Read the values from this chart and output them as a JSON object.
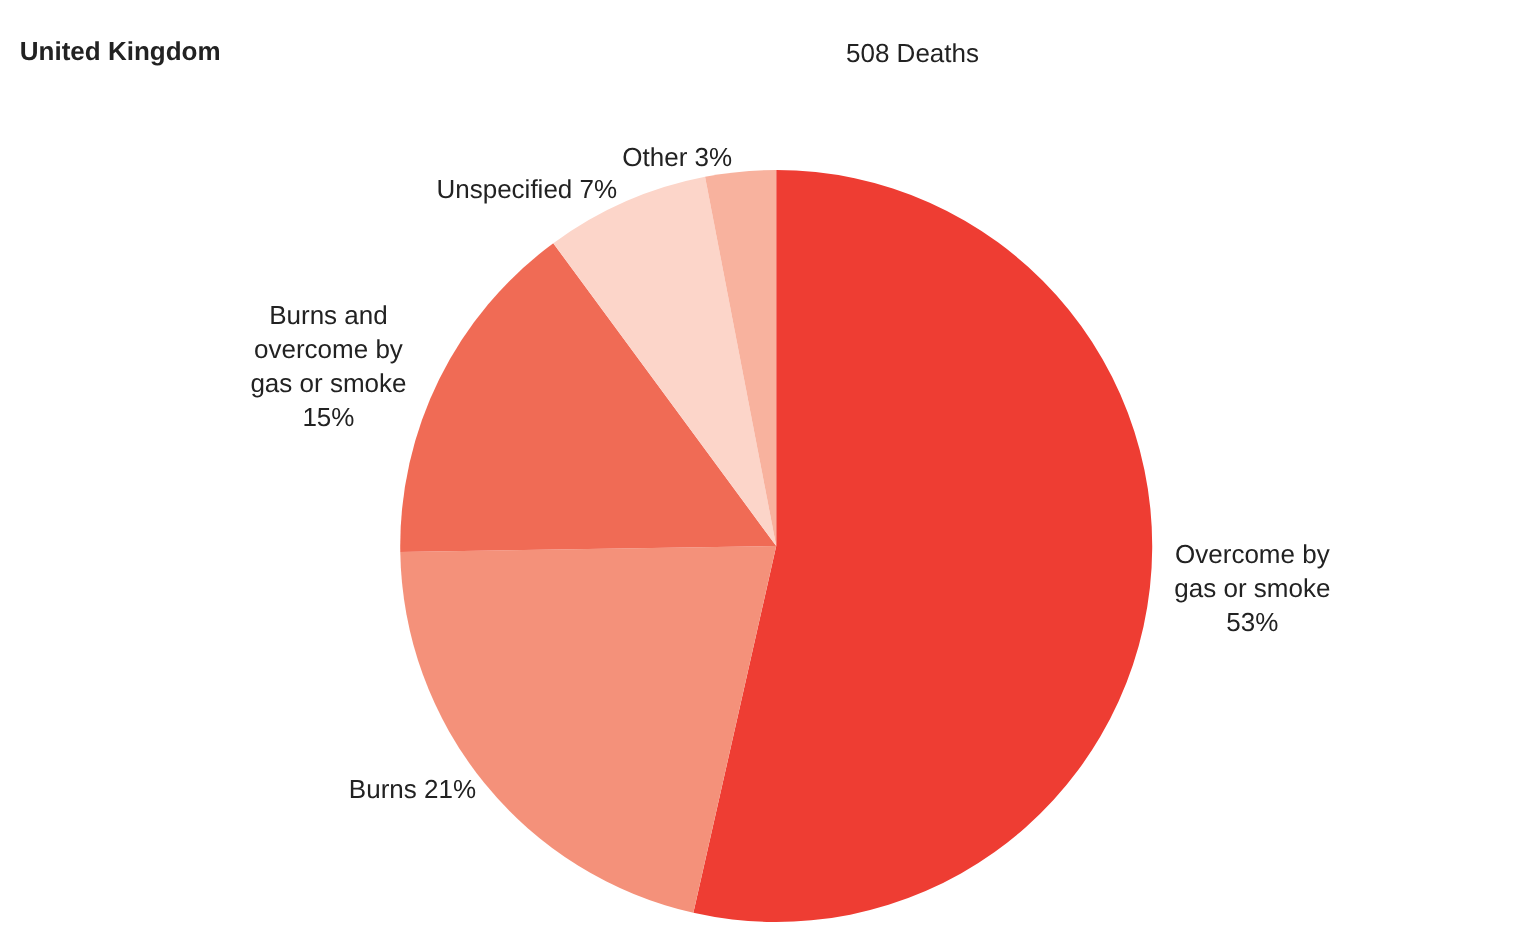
{
  "chart_data": {
    "type": "pie",
    "title": "United Kingdom",
    "subtitle": "508 Deaths",
    "categories": [
      "Overcome by gas or smoke",
      "Burns",
      "Burns and overcome by gas or smoke",
      "Unspecified",
      "Other"
    ],
    "values": [
      53,
      21,
      15,
      7,
      3
    ],
    "value_labels": [
      "53%",
      "21%",
      "15%",
      "7%",
      "3%"
    ],
    "colors": [
      "#ee3d33",
      "#f4917a",
      "#f06b55",
      "#fcd5c9",
      "#f8b29e"
    ],
    "legend": false
  }
}
